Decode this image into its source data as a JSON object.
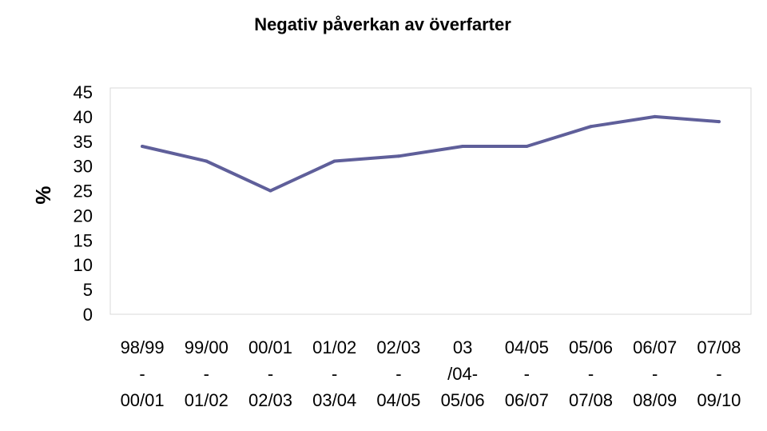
{
  "chart_data": {
    "type": "line",
    "title": "Negativ påverkan av överfarter",
    "xlabel": "",
    "ylabel": "%",
    "ylim": [
      0,
      45
    ],
    "yticks": [
      0,
      5,
      10,
      15,
      20,
      25,
      30,
      35,
      40,
      45
    ],
    "grid": false,
    "legend": "none",
    "line_color": "#5F5F9A",
    "categories": [
      [
        "98/99",
        "-",
        "00/01"
      ],
      [
        "99/00",
        "-",
        "01/02"
      ],
      [
        "00/01",
        "-",
        "02/03"
      ],
      [
        "01/02",
        "-",
        "03/04"
      ],
      [
        "02/03",
        "-",
        "04/05"
      ],
      [
        "03",
        "/04-",
        "05/06"
      ],
      [
        "04/05",
        "-",
        "06/07"
      ],
      [
        "05/06",
        "-",
        "07/08"
      ],
      [
        "06/07",
        "-",
        "08/09"
      ],
      [
        "07/08",
        "-",
        "09/10"
      ]
    ],
    "series": [
      {
        "values": [
          34,
          31,
          25,
          31,
          32,
          34,
          34,
          38,
          40,
          39
        ]
      }
    ]
  }
}
